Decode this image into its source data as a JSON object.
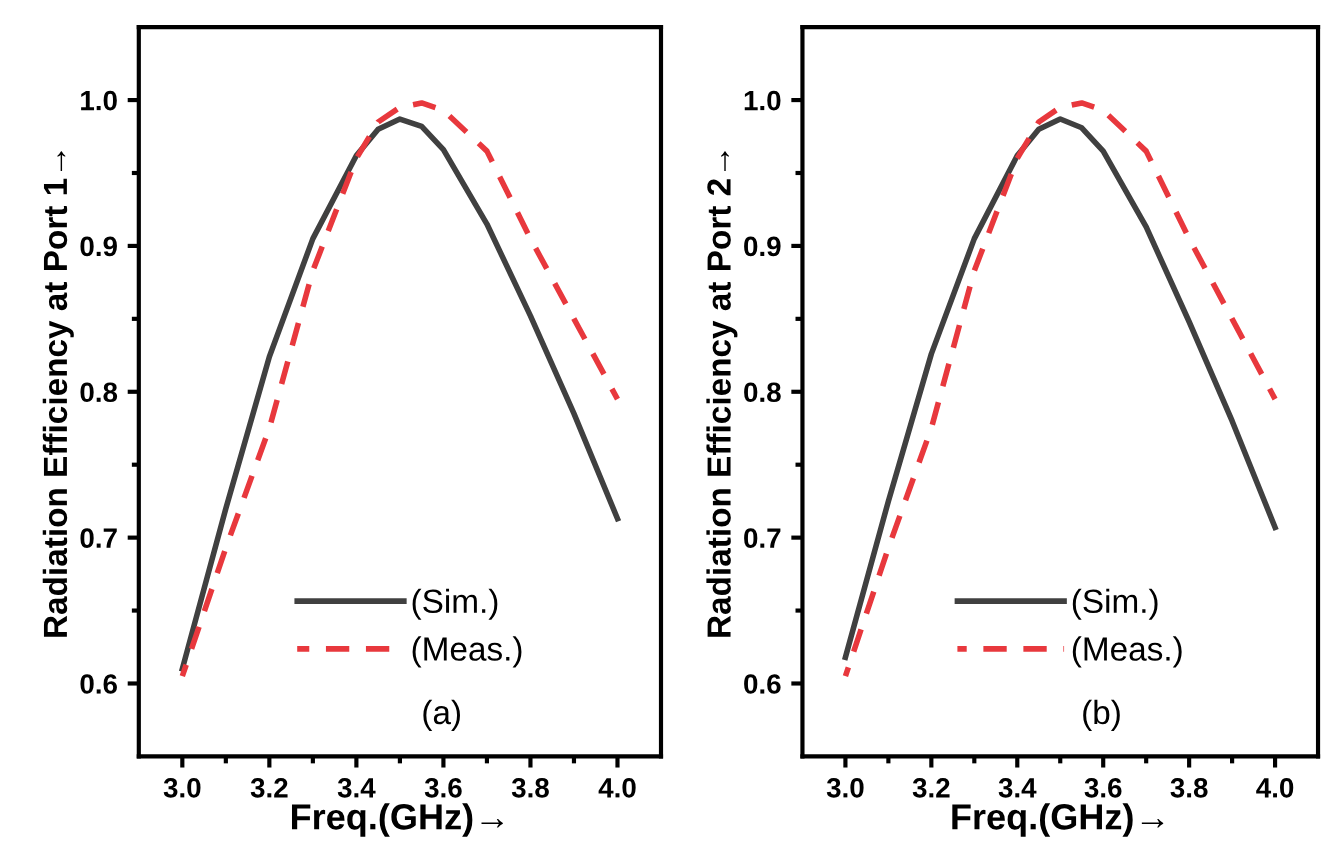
{
  "chart_data": [
    {
      "type": "line",
      "ylabel": "Radiation Efficiency at Port 1→",
      "xlabel": "Freq.(GHz)→",
      "annotations": [
        "(a)"
      ],
      "xlim": [
        2.9,
        4.1
      ],
      "ylim": [
        0.55,
        1.05
      ],
      "xticks": [
        {
          "value": 3,
          "label": "3.0"
        },
        {
          "value": 3.1,
          "label": null
        },
        3.2,
        {
          "value": 3.3,
          "label": null
        },
        3.4,
        {
          "value": 3.5,
          "label": null
        },
        3.6,
        {
          "value": 3.7,
          "label": null
        },
        3.8,
        {
          "value": 3.9,
          "label": null
        },
        {
          "value": 4,
          "label": "4.0"
        }
      ],
      "yticks": [
        0.6,
        {
          "value": 0.65,
          "label": null
        },
        0.7,
        {
          "value": 0.75,
          "label": null
        },
        0.8,
        {
          "value": 0.85,
          "label": null
        },
        0.9,
        {
          "value": 0.95,
          "label": null
        },
        {
          "value": 1,
          "label": "1.0"
        }
      ],
      "grid": false,
      "legend": "bottom",
      "x": [
        3.0,
        3.1,
        3.2,
        3.3,
        3.4,
        3.45,
        3.5,
        3.55,
        3.6,
        3.7,
        3.8,
        3.9,
        4.0
      ],
      "series": [
        {
          "name": "(Sim.)",
          "color": "#404040",
          "line_style": "solid",
          "values": [
            0.61,
            0.72,
            0.824,
            0.905,
            0.962,
            0.98,
            0.987,
            0.982,
            0.966,
            0.915,
            0.852,
            0.785,
            0.713
          ]
        },
        {
          "name": "(Meas.)",
          "color": "#e8383d",
          "line_style": "dashed",
          "values": [
            0.605,
            0.693,
            0.775,
            0.883,
            0.96,
            0.985,
            0.995,
            0.998,
            0.993,
            0.965,
            0.905,
            0.85,
            0.795
          ]
        }
      ]
    },
    {
      "type": "line",
      "ylabel": "Radiation Efficiency at Port 2→",
      "xlabel": "Freq.(GHz)→",
      "annotations": [
        "(b)"
      ],
      "xlim": [
        2.9,
        4.1
      ],
      "ylim": [
        0.55,
        1.05
      ],
      "xticks": [
        {
          "value": 3,
          "label": "3.0"
        },
        {
          "value": 3.1,
          "label": null
        },
        3.2,
        {
          "value": 3.3,
          "label": null
        },
        3.4,
        {
          "value": 3.5,
          "label": null
        },
        3.6,
        {
          "value": 3.7,
          "label": null
        },
        3.8,
        {
          "value": 3.9,
          "label": null
        },
        {
          "value": 4,
          "label": "4.0"
        }
      ],
      "yticks": [
        0.6,
        {
          "value": 0.65,
          "label": null
        },
        0.7,
        {
          "value": 0.75,
          "label": null
        },
        0.8,
        {
          "value": 0.85,
          "label": null
        },
        0.9,
        {
          "value": 0.95,
          "label": null
        },
        {
          "value": 1,
          "label": "1.0"
        }
      ],
      "grid": false,
      "legend": "bottom",
      "x": [
        3.0,
        3.1,
        3.2,
        3.3,
        3.4,
        3.45,
        3.5,
        3.55,
        3.6,
        3.7,
        3.8,
        3.9,
        4.0
      ],
      "series": [
        {
          "name": "(Sim.)",
          "color": "#404040",
          "line_style": "solid",
          "values": [
            0.618,
            0.725,
            0.826,
            0.905,
            0.962,
            0.98,
            0.987,
            0.981,
            0.965,
            0.913,
            0.848,
            0.78,
            0.707
          ]
        },
        {
          "name": "(Meas.)",
          "color": "#e8383d",
          "line_style": "dashed",
          "values": [
            0.605,
            0.693,
            0.775,
            0.883,
            0.96,
            0.985,
            0.995,
            0.998,
            0.993,
            0.965,
            0.905,
            0.85,
            0.795
          ]
        }
      ]
    }
  ]
}
